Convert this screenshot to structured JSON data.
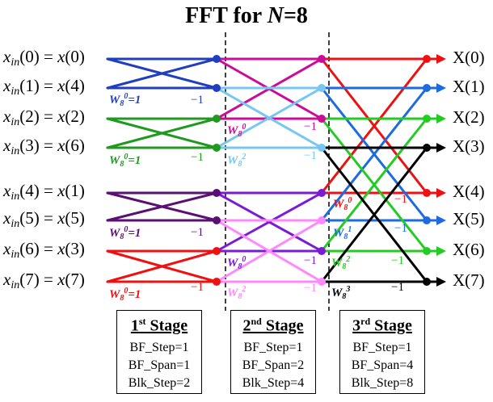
{
  "title": {
    "prefix": "FFT for ",
    "var": "N",
    "suffix": "=8"
  },
  "inputs": [
    {
      "sub": "in",
      "idx": "0",
      "x": "0"
    },
    {
      "sub": "in",
      "idx": "1",
      "x": "4"
    },
    {
      "sub": "in",
      "idx": "2",
      "x": "2"
    },
    {
      "sub": "in",
      "idx": "3",
      "x": "6"
    },
    {
      "sub": "in",
      "idx": "4",
      "x": "1"
    },
    {
      "sub": "in",
      "idx": "5",
      "x": "5"
    },
    {
      "sub": "in",
      "idx": "6",
      "x": "3"
    },
    {
      "sub": "in",
      "idx": "7",
      "x": "7"
    }
  ],
  "outputs": [
    "X(0)",
    "X(1)",
    "X(2)",
    "X(3)",
    "X(4)",
    "X(5)",
    "X(6)",
    "X(7)"
  ],
  "minus_one": "−1",
  "twiddles": {
    "stage1": [
      "W80=1",
      "W80=1",
      "W80=1",
      "W80=1"
    ],
    "stage2": [
      "W80",
      "W82",
      "W80",
      "W82"
    ],
    "stage3": [
      "W80",
      "W81",
      "W82",
      "W83"
    ]
  },
  "stages": [
    {
      "name_num": "1",
      "name_sup": "st",
      "name_rest": " Stage",
      "params": [
        "BF_Step=1",
        "BF_Span=1",
        "Blk_Step=2"
      ]
    },
    {
      "name_num": "2",
      "name_sup": "nd",
      "name_rest": " Stage",
      "params": [
        "BF_Step=1",
        "BF_Span=2",
        "Blk_Step=4"
      ]
    },
    {
      "name_num": "3",
      "name_sup": "rd",
      "name_rest": " Stage",
      "params": [
        "BF_Step=1",
        "BF_Span=4",
        "Blk_Step=8"
      ]
    }
  ],
  "colors": {
    "stage1": [
      "#1f3fbf",
      "#1f9a1f",
      "#5a0f73",
      "#ee1111"
    ],
    "stage2": [
      "#cc0b99",
      "#77c7f2",
      "#7a1bd6",
      "#ff88ff"
    ],
    "stage3": [
      "#ee1111",
      "#1e6be0",
      "#22cc22",
      "#000000"
    ],
    "twiddle_text": [
      "#1f3fbf",
      "#1f9a1f",
      "#5a0f73",
      "#ee1111",
      "#cc0b99",
      "#77c7f2",
      "#7a1bd6",
      "#ff88ff",
      "#ee1111",
      "#1e6be0",
      "#22cc22",
      "#000000"
    ]
  }
}
